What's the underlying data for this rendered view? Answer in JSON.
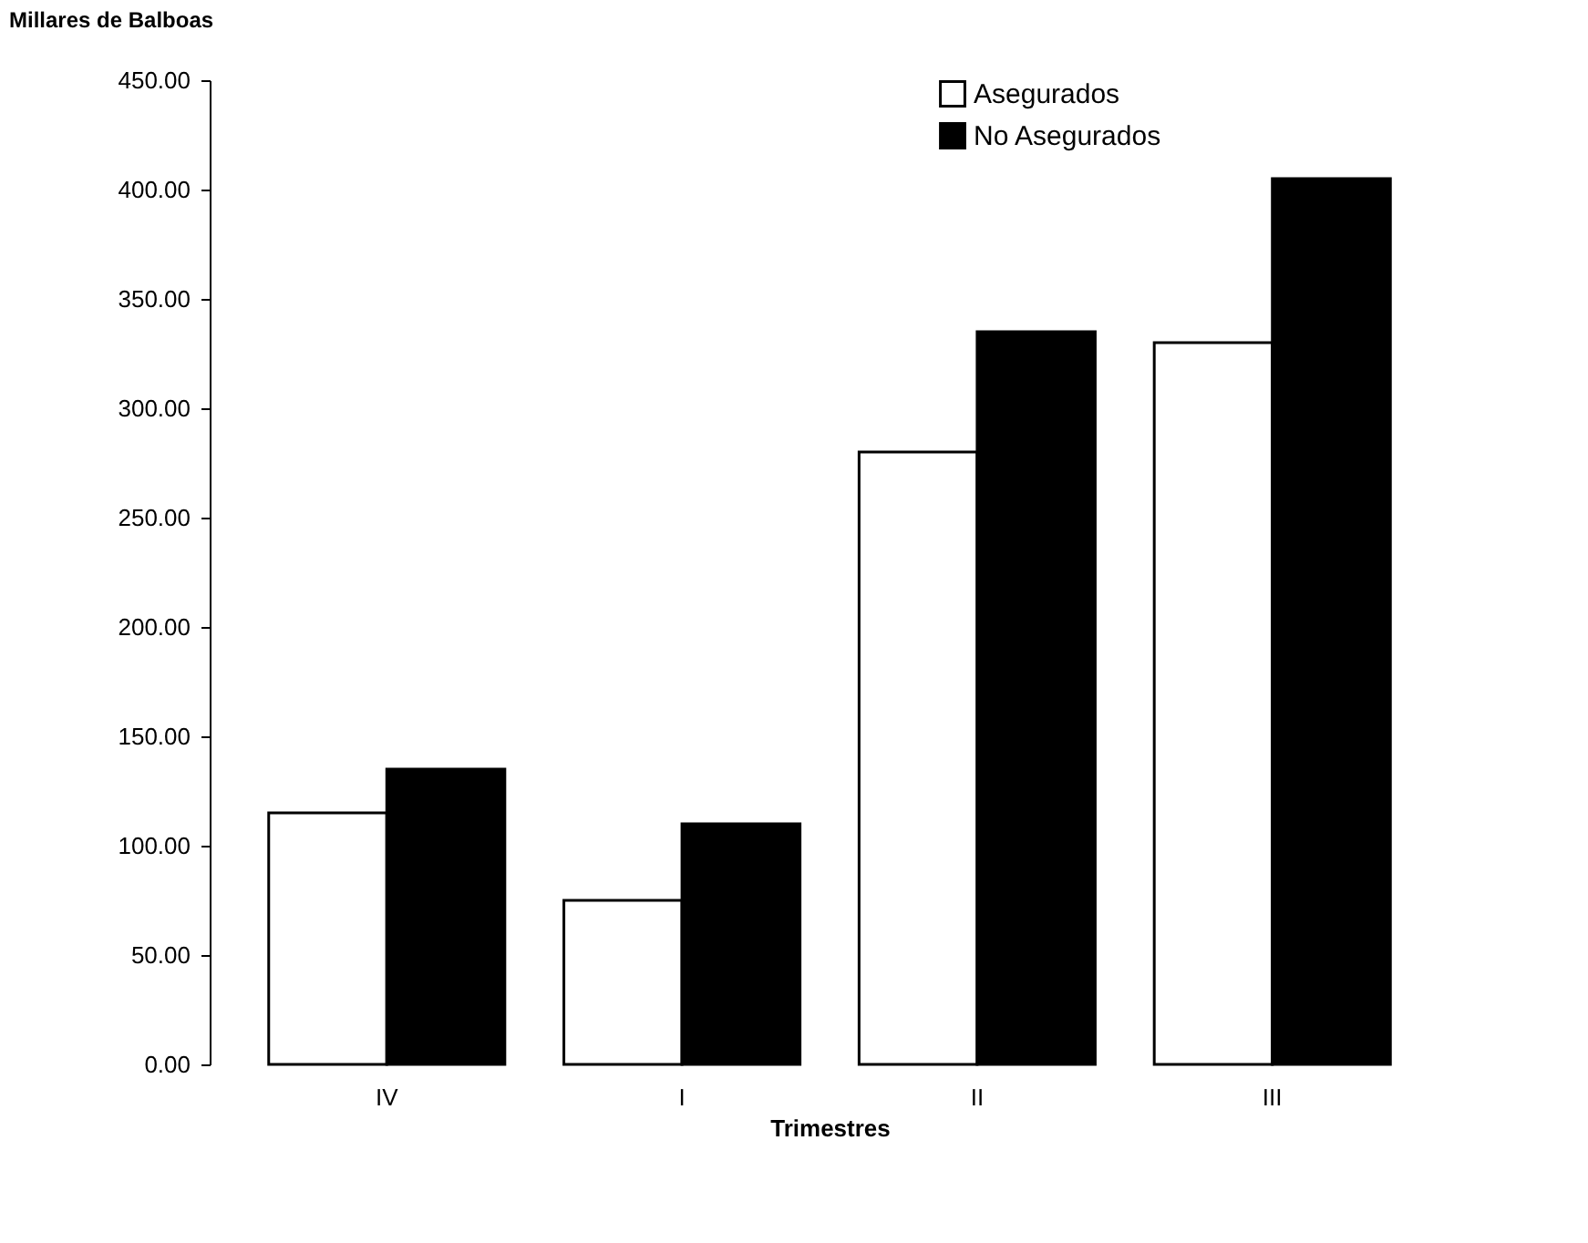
{
  "chart_data": {
    "type": "bar",
    "ylabel": "Millares de Balboas",
    "xlabel": "Trimestres",
    "categories": [
      "IV",
      "I",
      "II",
      "III"
    ],
    "series": [
      {
        "name": "Asegurados",
        "color": "#ffffff",
        "values": [
          115,
          75,
          280,
          330
        ]
      },
      {
        "name": "No Asegurados",
        "color": "#000000",
        "values": [
          135,
          110,
          335,
          405
        ]
      }
    ],
    "ylim": [
      0,
      450
    ],
    "yticks": [
      {
        "value": 0,
        "label": "0.00"
      },
      {
        "value": 50,
        "label": "50.00"
      },
      {
        "value": 100,
        "label": "100.00"
      },
      {
        "value": 150,
        "label": "150.00"
      },
      {
        "value": 200,
        "label": "200.00"
      },
      {
        "value": 250,
        "label": "250.00"
      },
      {
        "value": 300,
        "label": "300.00"
      },
      {
        "value": 350,
        "label": "350.00"
      },
      {
        "value": 400,
        "label": "400.00"
      },
      {
        "value": 450,
        "label": "450.00"
      }
    ],
    "legend": "top right",
    "grid": false
  }
}
